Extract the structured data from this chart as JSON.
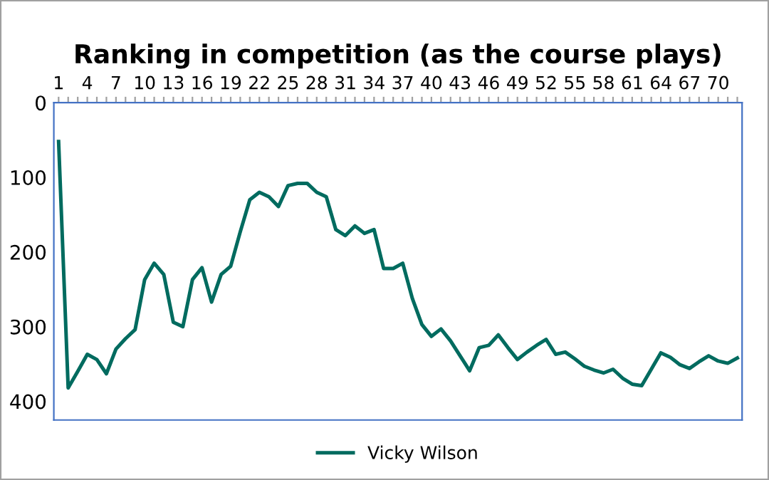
{
  "chart_data": {
    "type": "line",
    "title": "Ranking in competition (as the course plays)",
    "categories": [
      "1",
      null,
      null,
      "4",
      null,
      null,
      "7",
      null,
      null,
      "10",
      null,
      null,
      "13",
      null,
      null,
      "16",
      null,
      null,
      "19",
      null,
      null,
      "22",
      null,
      null,
      "25",
      null,
      null,
      "28",
      null,
      null,
      "31",
      null,
      null,
      "34",
      null,
      null,
      "37",
      null,
      null,
      "40",
      null,
      null,
      "43",
      null,
      null,
      "46",
      null,
      null,
      "49",
      null,
      null,
      "52",
      null,
      null,
      "55",
      null,
      null,
      "58",
      null,
      null,
      "61",
      null,
      null,
      "64",
      null,
      null,
      "67",
      null,
      null,
      "70",
      null,
      null
    ],
    "series": [
      {
        "name": "Vicky Wilson",
        "color": "#006b5f",
        "values": [
          52,
          382,
          360,
          337,
          344,
          363,
          330,
          316,
          304,
          237,
          215,
          230,
          294,
          300,
          237,
          221,
          267,
          230,
          219,
          173,
          130,
          120,
          126,
          139,
          111,
          108,
          108,
          120,
          126,
          170,
          178,
          165,
          175,
          170,
          222,
          222,
          215,
          262,
          297,
          313,
          303,
          319,
          339,
          359,
          328,
          325,
          311,
          328,
          344,
          334,
          325,
          317,
          337,
          334,
          343,
          353,
          358,
          362,
          357,
          369,
          377,
          379,
          357,
          335,
          341,
          351,
          356,
          347,
          339,
          346,
          349,
          342
        ]
      }
    ],
    "ylim": [
      425,
      0
    ],
    "yticks": [
      0,
      100,
      200,
      300,
      400
    ],
    "grid": false,
    "legend": "bottom",
    "marker": "none",
    "line_style": "solid"
  }
}
